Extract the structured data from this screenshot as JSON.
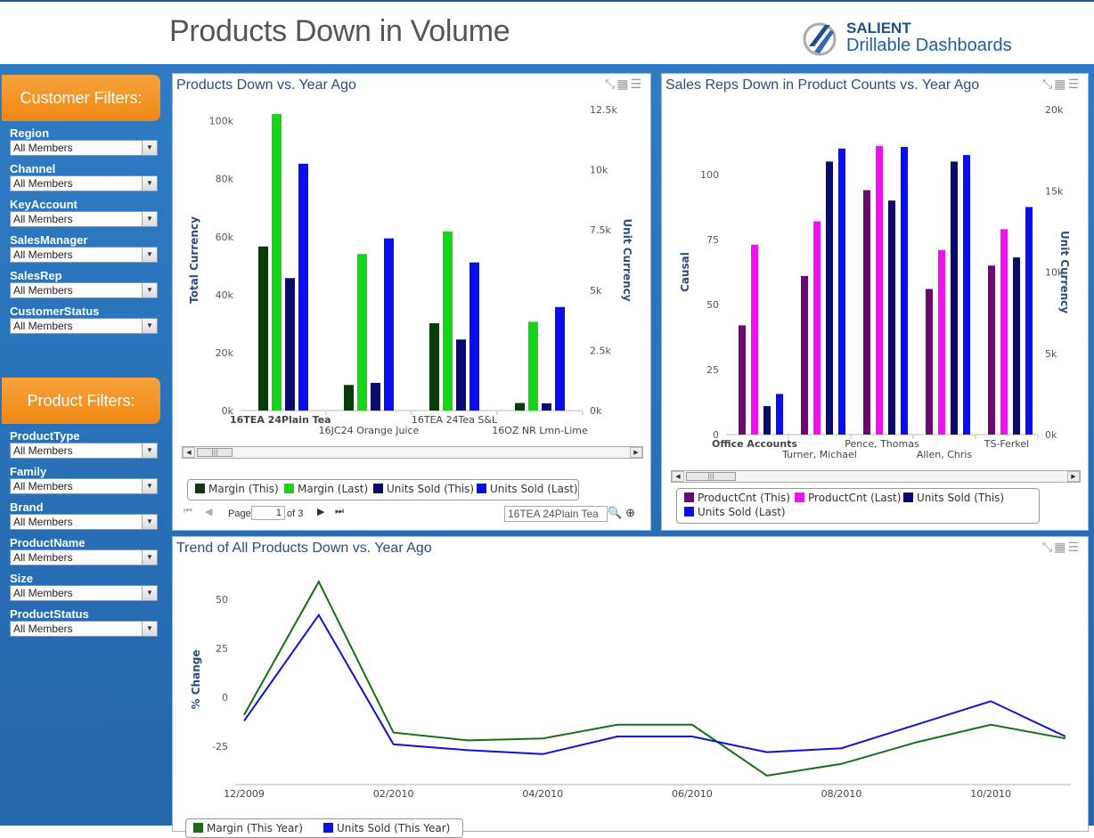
{
  "header": {
    "title": "Products Down in Volume",
    "logo_brand": "SALIENT",
    "logo_sub": "Drillable Dashboards"
  },
  "customer_filters": {
    "title": "Customer Filters:",
    "fields": [
      {
        "label": "Region",
        "value": "All Members"
      },
      {
        "label": "Channel",
        "value": "All Members"
      },
      {
        "label": "KeyAccount",
        "value": "All Members"
      },
      {
        "label": "SalesManager",
        "value": "All Members"
      },
      {
        "label": "SalesRep",
        "value": "All Members"
      },
      {
        "label": "CustomerStatus",
        "value": "All Members"
      }
    ]
  },
  "product_filters": {
    "title": "Product Filters:",
    "fields": [
      {
        "label": "ProductType",
        "value": "All Members"
      },
      {
        "label": "Family",
        "value": "All Members"
      },
      {
        "label": "Brand",
        "value": "All Members"
      },
      {
        "label": "ProductName",
        "value": "All Members"
      },
      {
        "label": "Size",
        "value": "All Members"
      },
      {
        "label": "ProductStatus",
        "value": "All Members"
      }
    ]
  },
  "panel1": {
    "title": "Products Down vs. Year Ago",
    "pager": {
      "page_label": "Page",
      "page_value": "1",
      "of_label": "of 3"
    },
    "search_value": "16TEA 24Plain Tea"
  },
  "panel2": {
    "title": "Sales Reps Down in Product Counts vs. Year Ago"
  },
  "panel3": {
    "title": "Trend of All Products Down vs. Year Ago"
  },
  "colors": {
    "margin_this": "#0b3a0b",
    "margin_last": "#18d418",
    "units_this": "#0a0a6e",
    "units_last": "#0c0cf0",
    "prod_this": "#6a0a6e",
    "prod_last": "#f010f0",
    "line_margin": "#157015",
    "line_units": "#1010d8"
  },
  "chart_data": [
    {
      "type": "bar",
      "title": "Products Down vs. Year Ago",
      "ylabel": "Total Currency",
      "y2label": "Unit Currency",
      "ylim": [
        0,
        100000
      ],
      "y2lim": [
        0,
        12500
      ],
      "yticks": [
        "0k",
        "20k",
        "40k",
        "60k",
        "80k",
        "100k"
      ],
      "y2ticks": [
        "0k",
        "2.5k",
        "5k",
        "7.5k",
        "10k",
        "12.5k"
      ],
      "categories": [
        "16TEA 24Plain Tea",
        "16JC24 Orange Juice",
        "16TEA 24Tea S&L",
        "16OZ NR Lmn-Lime"
      ],
      "series": [
        {
          "name": "Margin (This)",
          "axis": "left",
          "values": [
            54500,
            8500,
            29000,
            2500
          ]
        },
        {
          "name": "Margin (Last)",
          "axis": "left",
          "values": [
            98500,
            52000,
            59500,
            29500
          ]
        },
        {
          "name": "Units Sold (This)",
          "axis": "right",
          "values": [
            5500,
            1150,
            2950,
            300
          ]
        },
        {
          "name": "Units Sold (Last)",
          "axis": "right",
          "values": [
            10250,
            7150,
            6150,
            4300
          ]
        }
      ]
    },
    {
      "type": "bar",
      "title": "Sales Reps Down in Product Counts vs. Year Ago",
      "ylabel": "Causal",
      "y2label": "Unit Currency",
      "ylim": [
        0,
        125
      ],
      "y2lim": [
        0,
        20000
      ],
      "yticks": [
        "0",
        "25",
        "50",
        "75",
        "100"
      ],
      "y2ticks": [
        "0k",
        "5k",
        "10k",
        "15k",
        "20k"
      ],
      "categories": [
        "Office Accounts",
        "Turner, Michael",
        "Pence, Thomas",
        "Allen, Chris",
        "TS-Ferkel"
      ],
      "series": [
        {
          "name": "ProductCnt (This)",
          "axis": "left",
          "values": [
            42,
            61,
            94,
            56,
            65
          ]
        },
        {
          "name": "ProductCnt (Last)",
          "axis": "left",
          "values": [
            73,
            82,
            111,
            71,
            79
          ]
        },
        {
          "name": "Units Sold (This)",
          "axis": "right",
          "values": [
            1750,
            16800,
            14400,
            16800,
            10900
          ]
        },
        {
          "name": "Units Sold (Last)",
          "axis": "right",
          "values": [
            2500,
            17600,
            17700,
            17200,
            14000
          ]
        }
      ]
    },
    {
      "type": "line",
      "title": "Trend of All Products Down vs. Year Ago",
      "ylabel": "% Change",
      "ylim": [
        -40,
        60
      ],
      "yticks": [
        "-25",
        "0",
        "25",
        "50"
      ],
      "xticks": [
        "12/2009",
        "02/2010",
        "04/2010",
        "06/2010",
        "08/2010",
        "10/2010"
      ],
      "x": [
        "12/2009",
        "01/2010",
        "02/2010",
        "03/2010",
        "04/2010",
        "05/2010",
        "06/2010",
        "07/2010",
        "08/2010",
        "09/2010",
        "10/2010",
        "11/2010"
      ],
      "series": [
        {
          "name": "Margin (This Year)",
          "values": [
            -9,
            59,
            -18,
            -22,
            -21,
            -14,
            -14,
            -40,
            -34,
            -23,
            -14,
            -21
          ]
        },
        {
          "name": "Units Sold (This Year)",
          "values": [
            -12,
            42,
            -24,
            -27,
            -29,
            -20,
            -20,
            -28,
            -26,
            -14,
            -2,
            -20
          ]
        }
      ]
    }
  ]
}
